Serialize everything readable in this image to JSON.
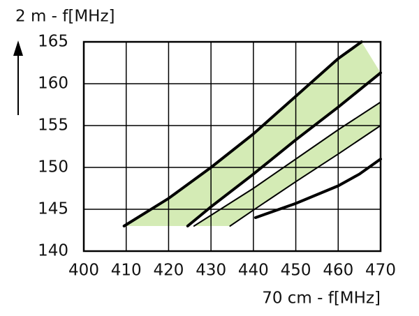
{
  "chart_data": {
    "type": "line",
    "ylabel": "2 m - f[MHz]",
    "xlabel": "70 cm - f[MHz]",
    "xlim": [
      400,
      470
    ],
    "xticks": [
      400,
      410,
      420,
      430,
      440,
      450,
      460,
      470
    ],
    "ylim": [
      140,
      165
    ],
    "yticks": [
      140,
      145,
      150,
      155,
      160,
      165
    ],
    "grid": true,
    "band_color": "#d4ebb5",
    "bands": [
      [
        0,
        1
      ],
      [
        2,
        3
      ]
    ],
    "series": [
      {
        "color": "#000000",
        "width": 4,
        "x": [
          409.5,
          420,
          430,
          440,
          450,
          460,
          465.5
        ],
        "values": [
          143,
          146.3,
          150,
          154,
          158.5,
          163,
          165
        ]
      },
      {
        "color": "#000000",
        "width": 4,
        "x": [
          424.5,
          430,
          440,
          450,
          460,
          470
        ],
        "values": [
          143,
          145.3,
          149.2,
          153.3,
          157.2,
          161.3
        ]
      },
      {
        "color": "#000000",
        "width": 2,
        "x": [
          426,
          440,
          450,
          460,
          470
        ],
        "values": [
          143,
          147.5,
          151,
          154.5,
          157.8
        ]
      },
      {
        "color": "#000000",
        "width": 2,
        "x": [
          434.5,
          440,
          450,
          460,
          470
        ],
        "values": [
          143,
          144.9,
          148.3,
          151.6,
          155
        ]
      },
      {
        "color": "#000000",
        "width": 4,
        "x": [
          440.5,
          450,
          460,
          465,
          470
        ],
        "values": [
          144,
          145.7,
          147.8,
          149.2,
          151
        ]
      }
    ]
  }
}
